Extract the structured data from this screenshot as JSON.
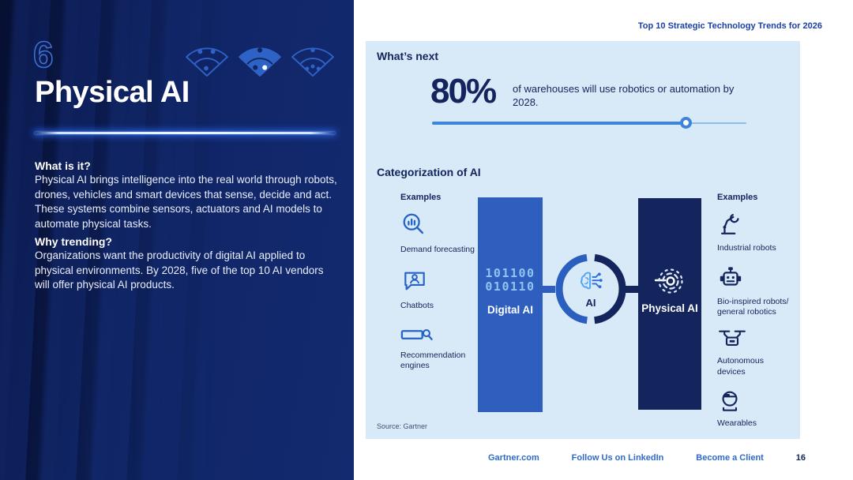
{
  "page": {
    "header": "Top 10 Strategic Technology Trends for 2026",
    "page_number": "16"
  },
  "left_panel": {
    "number": "6",
    "title": "Physical AI",
    "what_is_it": {
      "heading": "What is it?",
      "body": "Physical AI brings intelligence into the real world through robots, drones, vehicles and smart devices that sense, decide and act. These systems combine sensors, actuators and AI models to automate physical tasks."
    },
    "why_trending": {
      "heading": "Why trending?",
      "body": "Organizations want the productivity of digital AI applied to physical environments. By 2028, five of the top 10 AI vendors will offer physical AI products."
    }
  },
  "whats_next": {
    "heading": "What’s next",
    "stat_value": "80%",
    "stat_text": "of warehouses will use robotics or automation by 2028.",
    "slider_percent": 80.6
  },
  "categorization": {
    "heading": "Categorization of AI",
    "left_examples": {
      "heading": "Examples",
      "items": [
        {
          "icon": "demand-forecasting-icon",
          "label": "Demand forecasting"
        },
        {
          "icon": "chatbot-icon",
          "label": "Chatbots"
        },
        {
          "icon": "recommendation-engines-icon",
          "label": "Recommendation engines"
        }
      ]
    },
    "digital_ai": {
      "binary_line1": "101100",
      "binary_line2": "010110",
      "label": "Digital AI"
    },
    "ai_label": "AI",
    "physical_ai": {
      "label": "Physical AI"
    },
    "right_examples": {
      "heading": "Examples",
      "items": [
        {
          "icon": "industrial-robot-icon",
          "label": "Industrial robots"
        },
        {
          "icon": "bio-robot-icon",
          "label": "Bio-inspired robots/ general robotics"
        },
        {
          "icon": "drone-icon",
          "label": "Autonomous devices"
        },
        {
          "icon": "wearables-icon",
          "label": "Wearables"
        }
      ]
    }
  },
  "source": "Source: Gartner",
  "footer": {
    "links": [
      "Gartner.com",
      "Follow Us on LinkedIn",
      "Become a Client"
    ]
  },
  "colors": {
    "left_panel_navy": "#102565",
    "panel_light_blue": "#d8e9f7",
    "dark_navy_text": "#13255c",
    "digital_bar_blue": "#2e5fbe",
    "binary_text_blue": "#8fc4f0",
    "link_blue": "#2d6ace",
    "slider_blue": "#3d85dc",
    "icon_blue": "#2563c4",
    "header_blue": "#1b3fa6"
  }
}
